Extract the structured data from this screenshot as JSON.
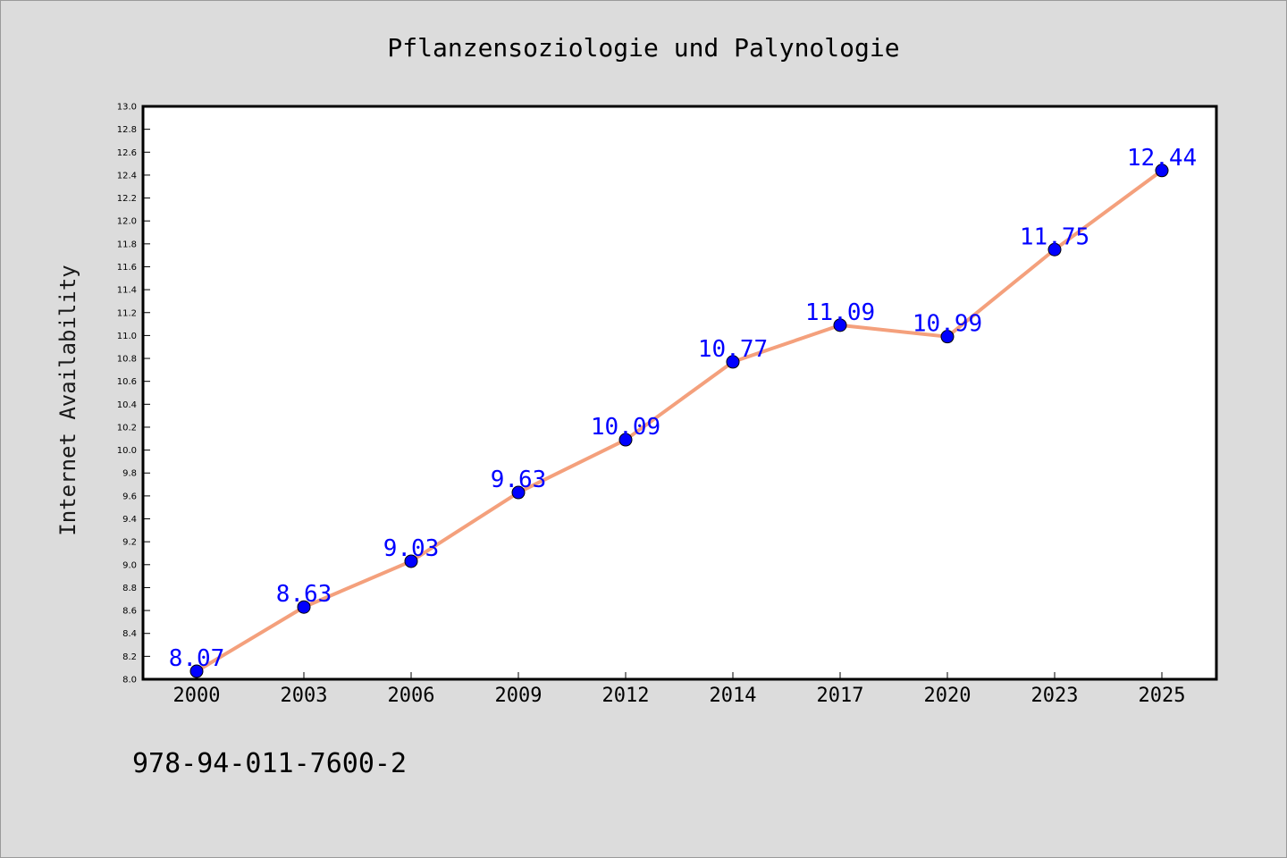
{
  "chart_data": {
    "type": "line",
    "title": "Pflanzensoziologie und Palynologie",
    "xlabel": "",
    "ylabel": "Internet Availability",
    "categories": [
      "2000",
      "2003",
      "2006",
      "2009",
      "2012",
      "2014",
      "2017",
      "2020",
      "2023",
      "2025"
    ],
    "series": [
      {
        "values": [
          8.07,
          8.63,
          9.03,
          9.63,
          10.09,
          10.77,
          11.09,
          10.99,
          11.75,
          12.44
        ],
        "data_labels": [
          "8.07",
          "8.63",
          "9.03",
          "9.63",
          "10.09",
          "10.77",
          "11.09",
          "10.99",
          "11.75",
          "12.44"
        ]
      }
    ],
    "ylim": [
      8.0,
      13.0
    ],
    "ytick_labels": [
      "8.0",
      "8.2",
      "8.4",
      "8.6",
      "8.8",
      "9.0",
      "9.2",
      "9.4",
      "9.6",
      "9.8",
      "10.0",
      "10.2",
      "10.4",
      "10.6",
      "10.8",
      "11.0",
      "11.2",
      "11.4",
      "11.6",
      "11.8",
      "12.0",
      "12.2",
      "12.4",
      "12.6",
      "12.8",
      "13.0"
    ],
    "grid": false,
    "legend": "none",
    "colors": {
      "line": "#f4a07c",
      "marker_fill": "#0000ff",
      "marker_edge": "#000000",
      "data_label": "#0000ff",
      "background": "#dcdcdc",
      "plot_background": "#ffffff"
    }
  },
  "footer": {
    "text": "978-94-011-7600-2"
  }
}
